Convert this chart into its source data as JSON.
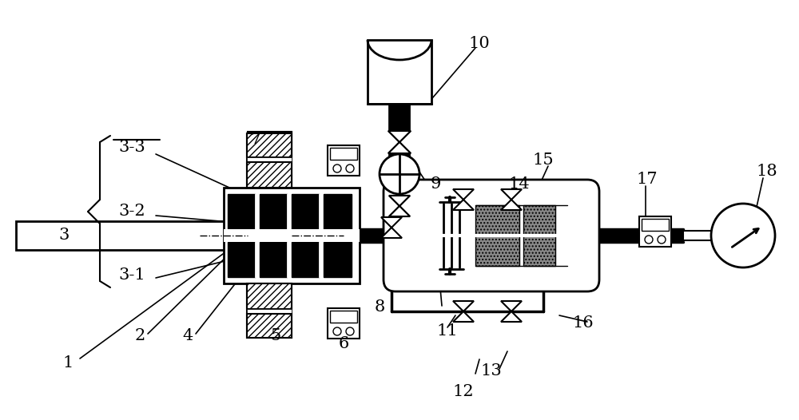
{
  "bg_color": "#ffffff",
  "figsize": [
    10.0,
    5.26
  ],
  "dpi": 100
}
